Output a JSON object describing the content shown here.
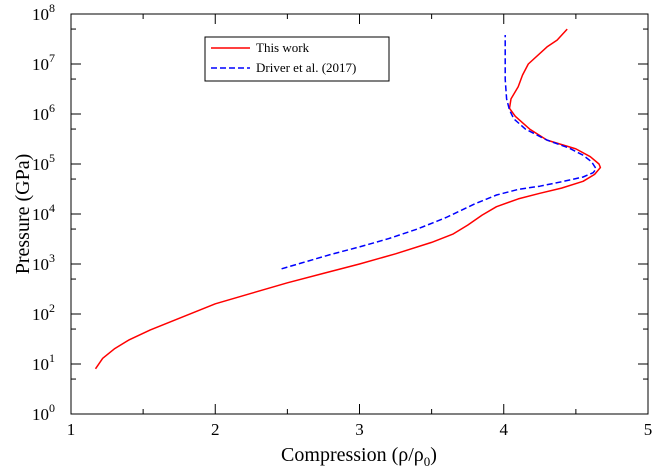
{
  "chart_data": {
    "type": "line",
    "title": "",
    "xlabel": "Compression (ρ/ρ",
    "xlabel_sub": "0",
    "xlabel_end": ")",
    "ylabel": "Pressure (GPa)",
    "x_scale": "linear",
    "y_scale": "log",
    "xlim": [
      1,
      5
    ],
    "ylim": [
      1,
      100000000
    ],
    "x_ticks": [
      "1",
      "2",
      "3",
      "4",
      "5"
    ],
    "y_tick_base": "10",
    "y_tick_exponents": [
      "0",
      "1",
      "2",
      "3",
      "4",
      "5",
      "6",
      "7",
      "8"
    ],
    "grid": false,
    "legend_position": "top-center",
    "series": [
      {
        "name": "This work",
        "color": "#ff0000",
        "style": "solid",
        "points": [
          [
            1.17,
            8
          ],
          [
            1.22,
            13
          ],
          [
            1.3,
            20
          ],
          [
            1.4,
            30
          ],
          [
            1.55,
            48
          ],
          [
            1.75,
            82
          ],
          [
            2.0,
            160
          ],
          [
            2.25,
            260
          ],
          [
            2.5,
            420
          ],
          [
            2.75,
            650
          ],
          [
            3.0,
            1000
          ],
          [
            3.25,
            1600
          ],
          [
            3.5,
            2700
          ],
          [
            3.65,
            4000
          ],
          [
            3.75,
            6000
          ],
          [
            3.85,
            9500
          ],
          [
            3.95,
            14000
          ],
          [
            4.1,
            20000
          ],
          [
            4.25,
            26000
          ],
          [
            4.4,
            33000
          ],
          [
            4.55,
            45000
          ],
          [
            4.63,
            62000
          ],
          [
            4.67,
            85000
          ],
          [
            4.66,
            100000
          ],
          [
            4.6,
            140000
          ],
          [
            4.5,
            200000
          ],
          [
            4.3,
            300000
          ],
          [
            4.18,
            500000
          ],
          [
            4.08,
            900000
          ],
          [
            4.04,
            1300000
          ],
          [
            4.05,
            2000000
          ],
          [
            4.1,
            3500000
          ],
          [
            4.13,
            6000000
          ],
          [
            4.17,
            10000000
          ],
          [
            4.3,
            22000000
          ],
          [
            4.37,
            30000000
          ],
          [
            4.44,
            50000000
          ]
        ]
      },
      {
        "name": "Driver et al. (2017)",
        "color": "#0000ff",
        "style": "dashed",
        "points": [
          [
            2.46,
            800
          ],
          [
            2.6,
            1050
          ],
          [
            2.8,
            1550
          ],
          [
            3.0,
            2200
          ],
          [
            3.2,
            3200
          ],
          [
            3.4,
            5000
          ],
          [
            3.6,
            8500
          ],
          [
            3.8,
            16000
          ],
          [
            3.95,
            24000
          ],
          [
            4.1,
            31000
          ],
          [
            4.25,
            36000
          ],
          [
            4.4,
            44000
          ],
          [
            4.55,
            55000
          ],
          [
            4.62,
            67000
          ],
          [
            4.64,
            80000
          ],
          [
            4.61,
            110000
          ],
          [
            4.55,
            150000
          ],
          [
            4.45,
            210000
          ],
          [
            4.3,
            300000
          ],
          [
            4.15,
            500000
          ],
          [
            4.07,
            800000
          ],
          [
            4.04,
            1200000
          ],
          [
            4.02,
            2000000
          ],
          [
            4.01,
            5000000
          ],
          [
            4.01,
            10000000
          ],
          [
            4.01,
            38000000
          ]
        ]
      }
    ]
  }
}
